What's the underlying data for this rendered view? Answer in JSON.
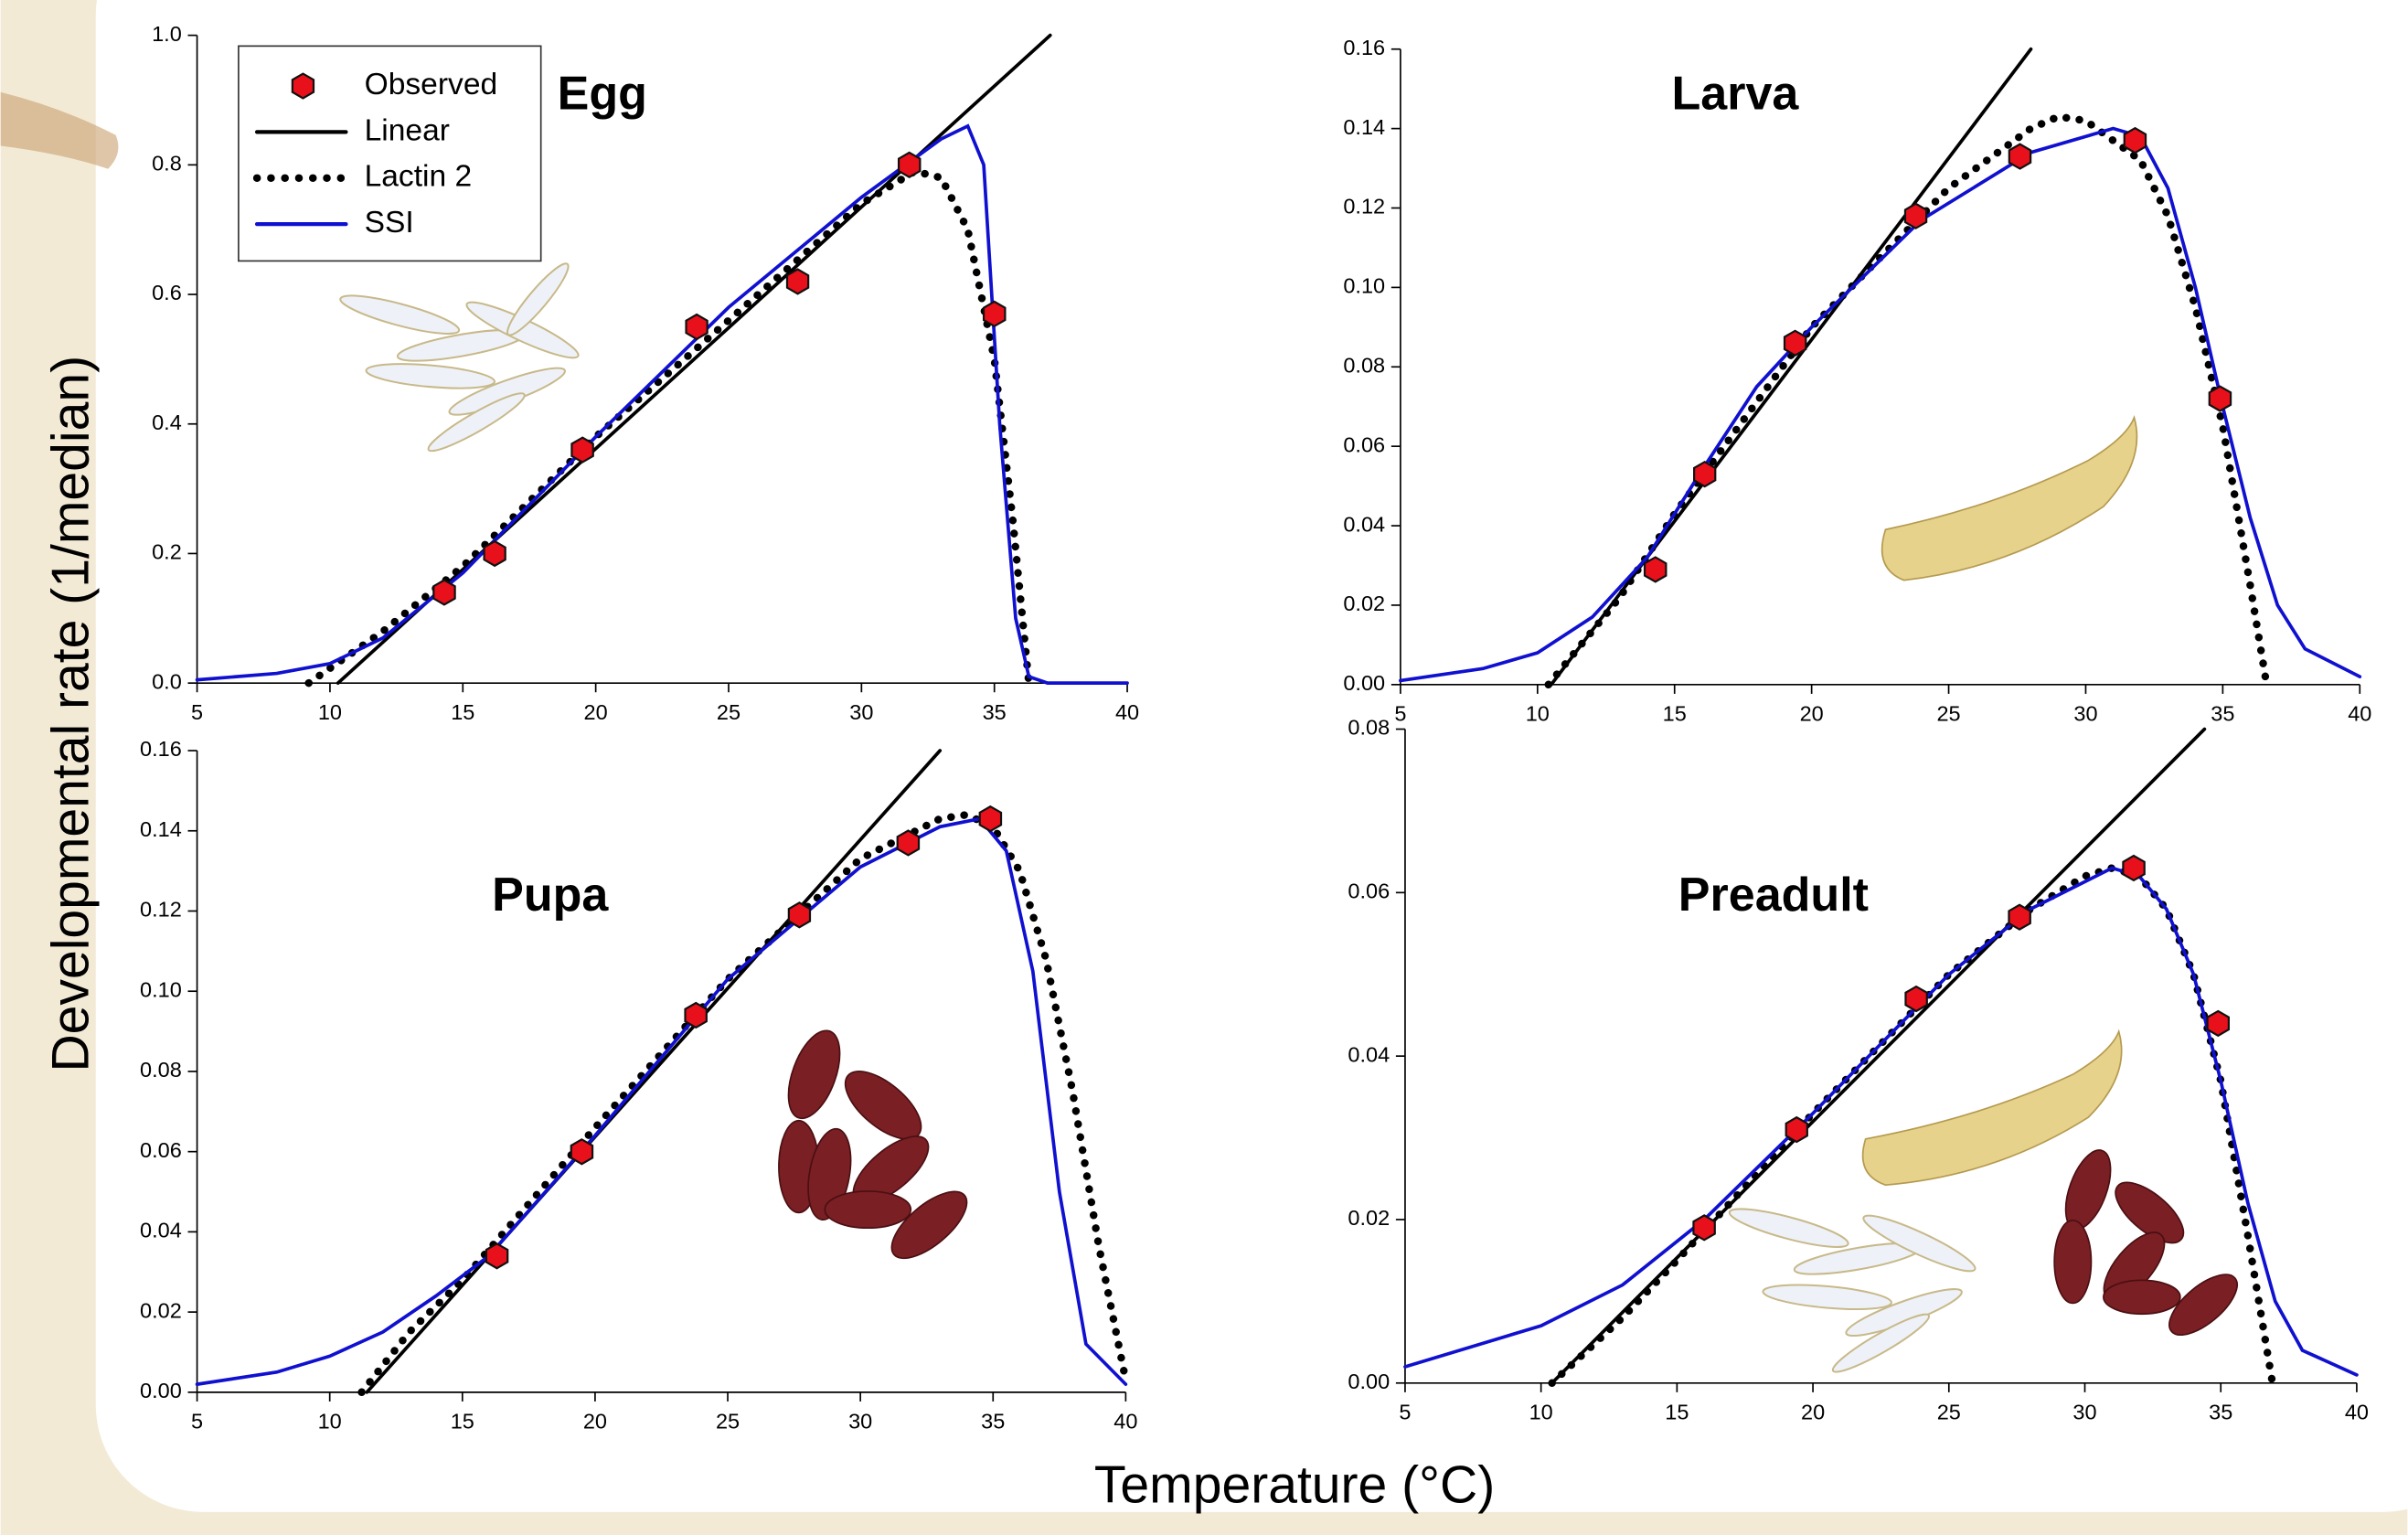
{
  "shared": {
    "ylabel": "Developmental rate (1/median)",
    "xlabel": "Temperature (°C)"
  },
  "chart_data": [
    {
      "type": "line",
      "title": "Egg",
      "xlim": [
        5,
        40
      ],
      "xticks": [
        5,
        10,
        15,
        20,
        25,
        30,
        35,
        40
      ],
      "ylim": [
        0,
        1
      ],
      "yticks": [
        {
          "value": 0,
          "label": "0.0"
        },
        0.2,
        0.4,
        0.6,
        0.8,
        {
          "value": 1,
          "label": "1.0"
        }
      ],
      "legend": "top-left",
      "series": [
        {
          "name": "Observed",
          "type": "scatter",
          "marker": "hexagon",
          "color": "#e8101a",
          "x": [
            14.3,
            16.2,
            19.5,
            23.8,
            27.6,
            31.8,
            35
          ],
          "values": [
            0.14,
            0.2,
            0.36,
            0.55,
            0.62,
            0.8,
            0.57
          ]
        },
        {
          "name": "Linear",
          "type": "line",
          "style": "solid",
          "color": "#000000",
          "x": [
            10.3,
            37.1
          ],
          "values": [
            0,
            1
          ]
        },
        {
          "name": "Lactin 2",
          "type": "line",
          "style": "dotted",
          "color": "#000000",
          "x": [
            9.2,
            12,
            15,
            20,
            25,
            30,
            32,
            33,
            34,
            35,
            35.7,
            36.3
          ],
          "values": [
            0,
            0.08,
            0.18,
            0.38,
            0.56,
            0.74,
            0.79,
            0.78,
            0.7,
            0.5,
            0.25,
            0
          ]
        },
        {
          "name": "SSI",
          "type": "line",
          "style": "solid",
          "color": "#1010d0",
          "x": [
            5,
            8,
            10,
            12,
            15,
            20,
            25,
            30,
            33,
            34,
            34.6,
            35.2,
            35.8,
            36.3,
            37,
            40
          ],
          "values": [
            0.005,
            0.015,
            0.03,
            0.07,
            0.17,
            0.38,
            0.58,
            0.75,
            0.84,
            0.86,
            0.8,
            0.4,
            0.1,
            0.01,
            0,
            0
          ]
        }
      ]
    },
    {
      "type": "line",
      "title": "Larva",
      "xlim": [
        5,
        40
      ],
      "xticks": [
        5,
        10,
        15,
        20,
        25,
        30,
        35,
        40
      ],
      "ylim": [
        0,
        0.16
      ],
      "yticks": [
        {
          "value": 0,
          "label": "0.00"
        },
        0.02,
        0.04,
        0.06,
        0.08,
        {
          "value": 0.1,
          "label": "0.10"
        },
        0.12,
        0.14,
        0.16
      ],
      "series": [
        {
          "type": "scatter",
          "marker": "hexagon",
          "color": "#e8101a",
          "x": [
            14.3,
            16.1,
            19.4,
            23.8,
            27.6,
            31.8,
            34.9
          ],
          "values": [
            0.029,
            0.053,
            0.086,
            0.118,
            0.133,
            0.137,
            0.072
          ]
        },
        {
          "type": "line",
          "style": "solid",
          "color": "#000000",
          "x": [
            10.5,
            28
          ],
          "values": [
            0,
            0.16
          ]
        },
        {
          "type": "line",
          "style": "dotted",
          "color": "#000000",
          "x": [
            10.4,
            13,
            15,
            20,
            25,
            28,
            29,
            30,
            32,
            33,
            34,
            35,
            36,
            36.6
          ],
          "values": [
            0,
            0.022,
            0.043,
            0.09,
            0.125,
            0.14,
            0.143,
            0.142,
            0.132,
            0.118,
            0.095,
            0.065,
            0.025,
            0
          ]
        },
        {
          "type": "line",
          "style": "solid",
          "color": "#1010d0",
          "x": [
            5,
            8,
            10,
            12,
            14,
            16,
            18,
            20,
            24,
            28,
            31,
            32,
            33,
            34,
            35,
            36,
            37,
            38,
            40
          ],
          "values": [
            0.001,
            0.004,
            0.008,
            0.017,
            0.032,
            0.054,
            0.075,
            0.09,
            0.117,
            0.134,
            0.14,
            0.138,
            0.125,
            0.1,
            0.07,
            0.042,
            0.02,
            0.009,
            0.002
          ]
        }
      ]
    },
    {
      "type": "line",
      "title": "Pupa",
      "xlim": [
        5,
        40
      ],
      "xticks": [
        5,
        10,
        15,
        20,
        25,
        30,
        35,
        40
      ],
      "ylim": [
        0,
        0.16
      ],
      "yticks": [
        {
          "value": 0,
          "label": "0.00"
        },
        0.02,
        0.04,
        0.06,
        0.08,
        {
          "value": 0.1,
          "label": "0.10"
        },
        0.12,
        0.14,
        0.16
      ],
      "series": [
        {
          "type": "scatter",
          "marker": "hexagon",
          "color": "#e8101a",
          "x": [
            16.3,
            19.5,
            23.8,
            27.7,
            31.8,
            34.9
          ],
          "values": [
            0.034,
            0.06,
            0.094,
            0.119,
            0.137,
            0.143
          ]
        },
        {
          "type": "line",
          "style": "solid",
          "color": "#000000",
          "x": [
            11.4,
            33
          ],
          "values": [
            0,
            0.16
          ]
        },
        {
          "type": "line",
          "style": "dotted",
          "color": "#000000",
          "x": [
            11.2,
            13,
            15,
            20,
            25,
            30,
            33,
            34,
            35,
            36,
            37,
            38,
            39,
            40
          ],
          "values": [
            0,
            0.015,
            0.028,
            0.066,
            0.103,
            0.133,
            0.143,
            0.144,
            0.141,
            0.13,
            0.108,
            0.075,
            0.036,
            0.003
          ]
        },
        {
          "type": "line",
          "style": "solid",
          "color": "#1010d0",
          "x": [
            5,
            8,
            10,
            12,
            14,
            16,
            20,
            25,
            30,
            33,
            34.5,
            35.5,
            36.5,
            37.5,
            38.5,
            40
          ],
          "values": [
            0.002,
            0.005,
            0.009,
            0.015,
            0.024,
            0.034,
            0.064,
            0.103,
            0.131,
            0.141,
            0.143,
            0.135,
            0.105,
            0.05,
            0.012,
            0.002
          ]
        }
      ]
    },
    {
      "type": "line",
      "title": "Preadult",
      "xlim": [
        5,
        40
      ],
      "xticks": [
        5,
        10,
        15,
        20,
        25,
        30,
        35,
        40
      ],
      "ylim": [
        0,
        0.08
      ],
      "yticks": [
        {
          "value": 0,
          "label": "0.00"
        },
        0.02,
        0.04,
        0.06,
        0.08
      ],
      "series": [
        {
          "type": "scatter",
          "marker": "hexagon",
          "color": "#e8101a",
          "x": [
            16,
            19.4,
            23.8,
            27.6,
            31.8,
            34.9
          ],
          "values": [
            0.019,
            0.031,
            0.047,
            0.057,
            0.063,
            0.044
          ]
        },
        {
          "type": "line",
          "style": "solid",
          "color": "#000000",
          "x": [
            10.4,
            34.4
          ],
          "values": [
            0,
            0.08
          ]
        },
        {
          "type": "line",
          "style": "dotted",
          "color": "#000000",
          "x": [
            10.4,
            13,
            15,
            20,
            25,
            28,
            30,
            31,
            32,
            33,
            34,
            35,
            36,
            36.9
          ],
          "values": [
            0,
            0.008,
            0.015,
            0.033,
            0.05,
            0.058,
            0.062,
            0.063,
            0.062,
            0.058,
            0.05,
            0.037,
            0.018,
            0
          ]
        },
        {
          "type": "line",
          "style": "solid",
          "color": "#1010d0",
          "x": [
            5,
            8,
            10,
            13,
            16,
            20,
            25,
            28,
            31,
            32,
            33,
            34,
            35,
            36,
            37,
            38,
            40
          ],
          "values": [
            0.002,
            0.005,
            0.007,
            0.012,
            0.02,
            0.033,
            0.05,
            0.058,
            0.063,
            0.062,
            0.058,
            0.05,
            0.037,
            0.022,
            0.01,
            0.004,
            0.001
          ]
        }
      ]
    }
  ]
}
